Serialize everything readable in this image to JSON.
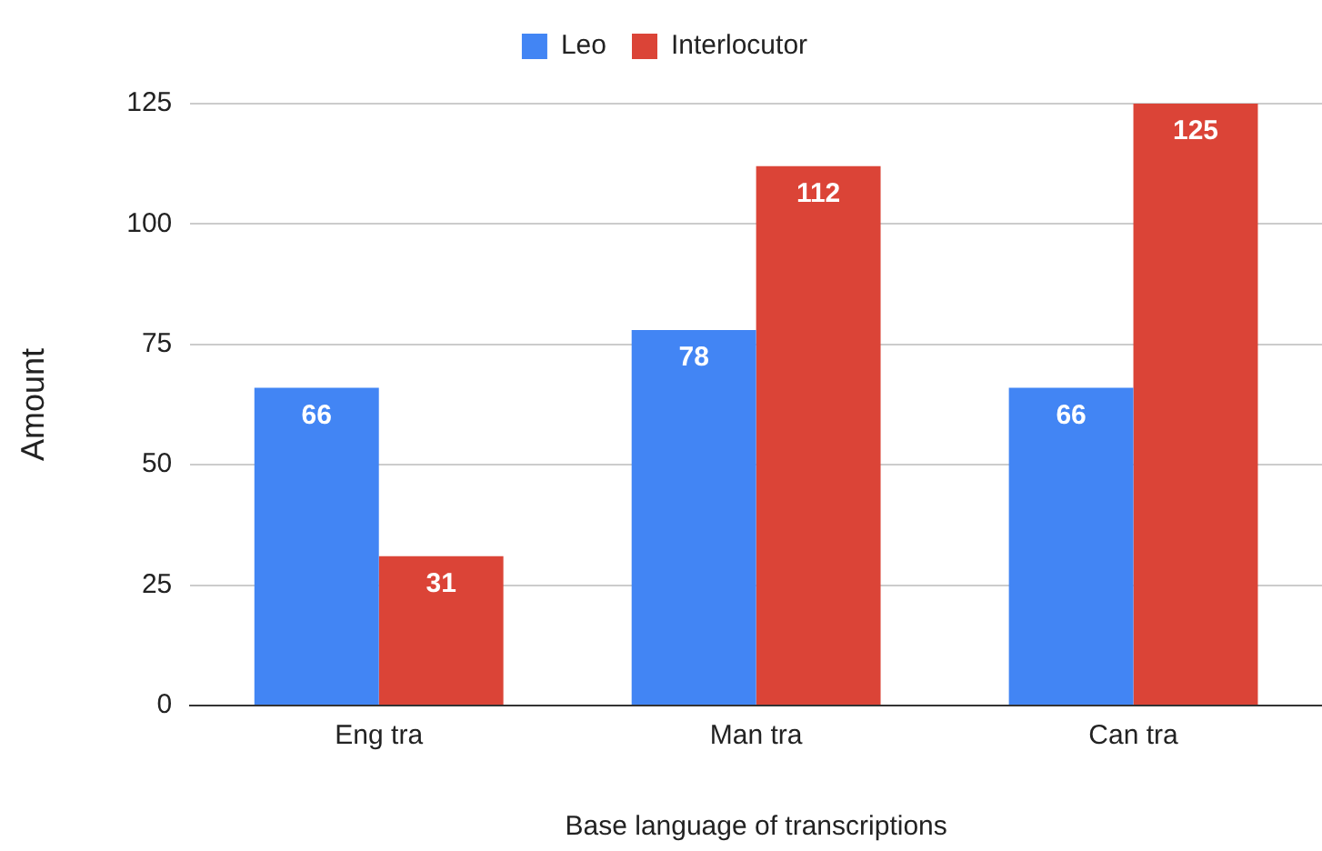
{
  "chart_data": {
    "type": "bar",
    "xlabel": "Base language of transcriptions",
    "ylabel": "Amount",
    "categories": [
      "Eng tra",
      "Man tra",
      "Can tra"
    ],
    "series": [
      {
        "name": "Leo",
        "color": "#4285f4",
        "values": [
          66,
          78,
          66
        ]
      },
      {
        "name": "Interlocutor",
        "color": "#db4437",
        "values": [
          31,
          112,
          125
        ]
      }
    ],
    "ylim": [
      0,
      125
    ],
    "yticks": [
      0,
      25,
      50,
      75,
      100,
      125
    ],
    "grid": "y",
    "legend": "top",
    "data_labels": true
  }
}
